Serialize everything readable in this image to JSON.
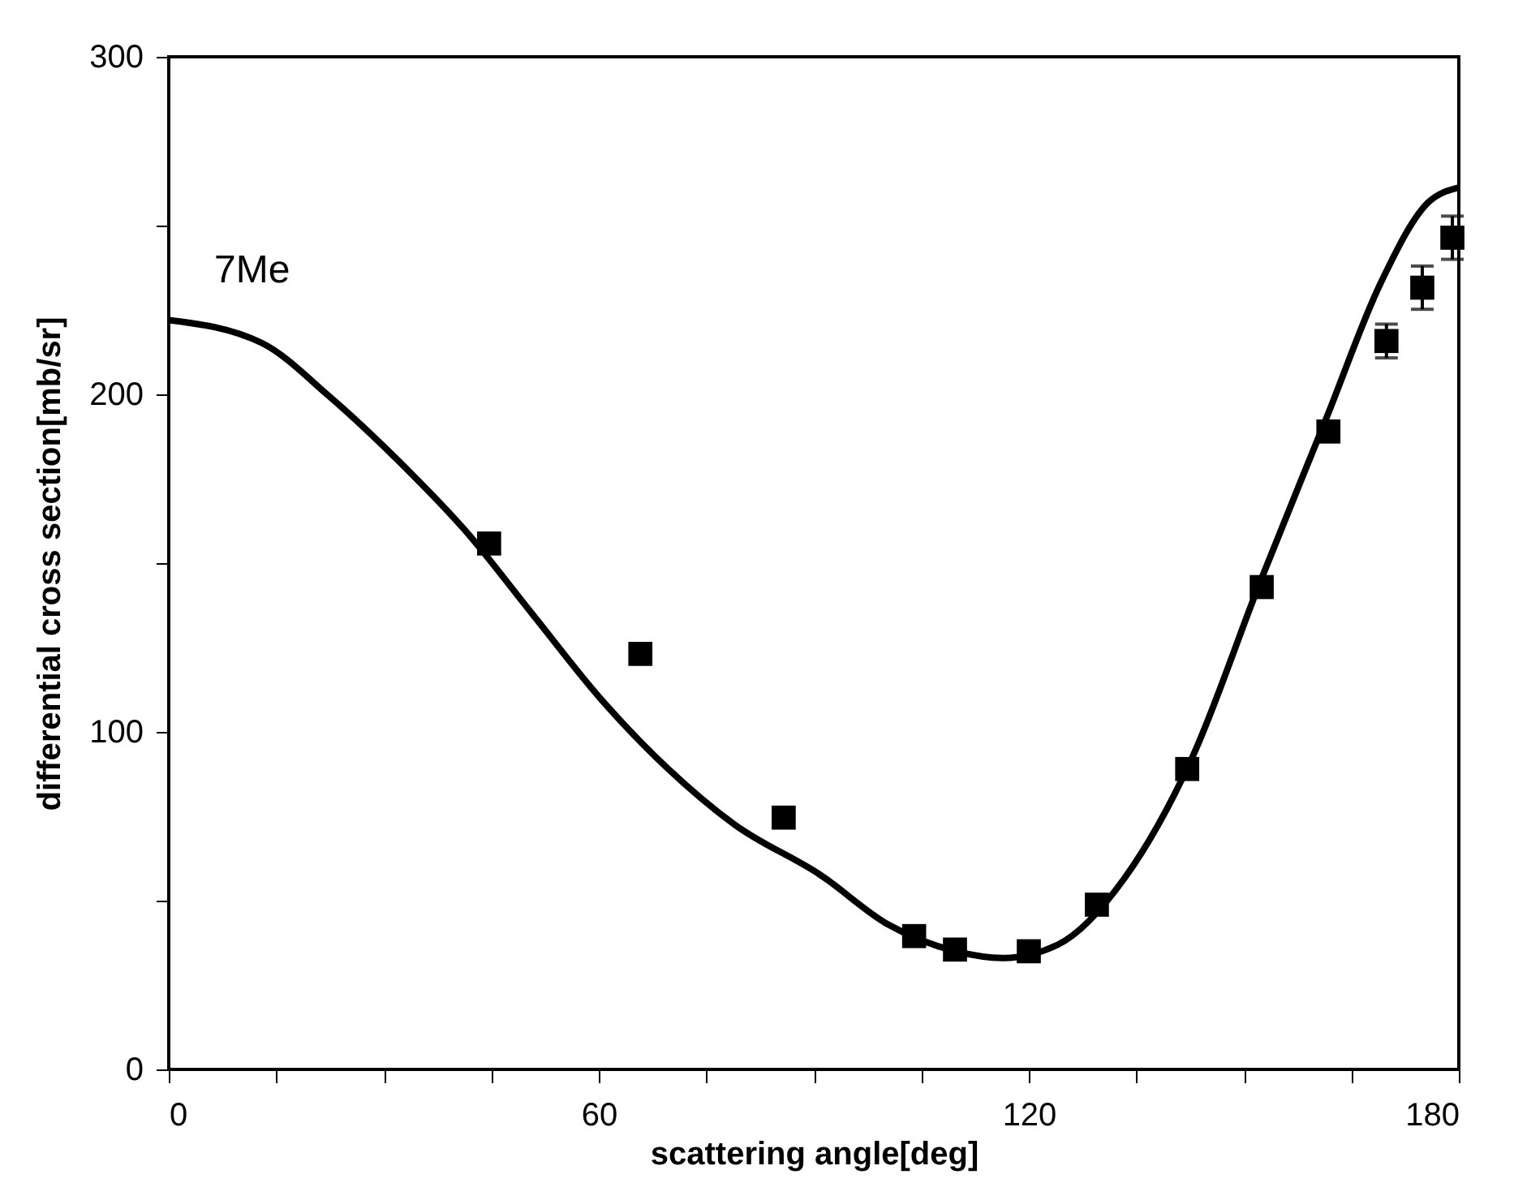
{
  "chart_data": {
    "type": "scatter",
    "xlabel": "scattering angle[deg]",
    "ylabel": "differential cross section[mb/sr]",
    "annotations": [
      "7Me"
    ],
    "xlim": [
      0,
      180
    ],
    "ylim": [
      0,
      300
    ],
    "xticks": [
      0,
      {
        "value": 15,
        "label": null
      },
      {
        "value": 30,
        "label": null
      },
      {
        "value": 45,
        "label": null
      },
      60,
      {
        "value": 75,
        "label": null
      },
      {
        "value": 90,
        "label": null
      },
      {
        "value": 105,
        "label": null
      },
      120,
      {
        "value": 135,
        "label": null
      },
      {
        "value": 150,
        "label": null
      },
      {
        "value": 165,
        "label": null
      },
      180
    ],
    "yticks": [
      0,
      {
        "value": 50,
        "label": null
      },
      100,
      {
        "value": 150,
        "label": null
      },
      200,
      {
        "value": 250,
        "label": null
      },
      300
    ],
    "grid": false,
    "series": [
      {
        "type": "line",
        "color": "#000000",
        "line_style": "solid",
        "marker": "none",
        "x": [
          0,
          13,
          22.4,
          31.9,
          41.3,
          50.7,
          60.1,
          69.5,
          78.9,
          91,
          100.4,
          109.8,
          116.4,
          124,
          133.4,
          142.8,
          152.2,
          161.6,
          169.1,
          175.7,
          179.9
        ],
        "values": [
          222,
          215.2,
          199.4,
          180.6,
          159.8,
          135,
          110.2,
          89.4,
          72.6,
          57.5,
          42.9,
          35,
          33,
          36.9,
          56.8,
          92.4,
          144,
          193.4,
          233,
          256.8,
          261.2
        ]
      },
      {
        "type": "scatter",
        "color": "#000000",
        "marker": "square",
        "x": [
          44.7,
          65.8,
          85.8,
          104,
          109.7,
          120,
          129.5,
          142.1,
          152.5,
          161.8,
          169.9,
          174.9,
          179.1
        ],
        "values": [
          155.8,
          123.1,
          74.6,
          39.5,
          35.5,
          35,
          48.8,
          89,
          142.9,
          189,
          215.8,
          231.6,
          246.4
        ],
        "errors": [
          null,
          null,
          null,
          null,
          null,
          null,
          null,
          null,
          null,
          3,
          5,
          6.4,
          6.4
        ]
      }
    ]
  }
}
